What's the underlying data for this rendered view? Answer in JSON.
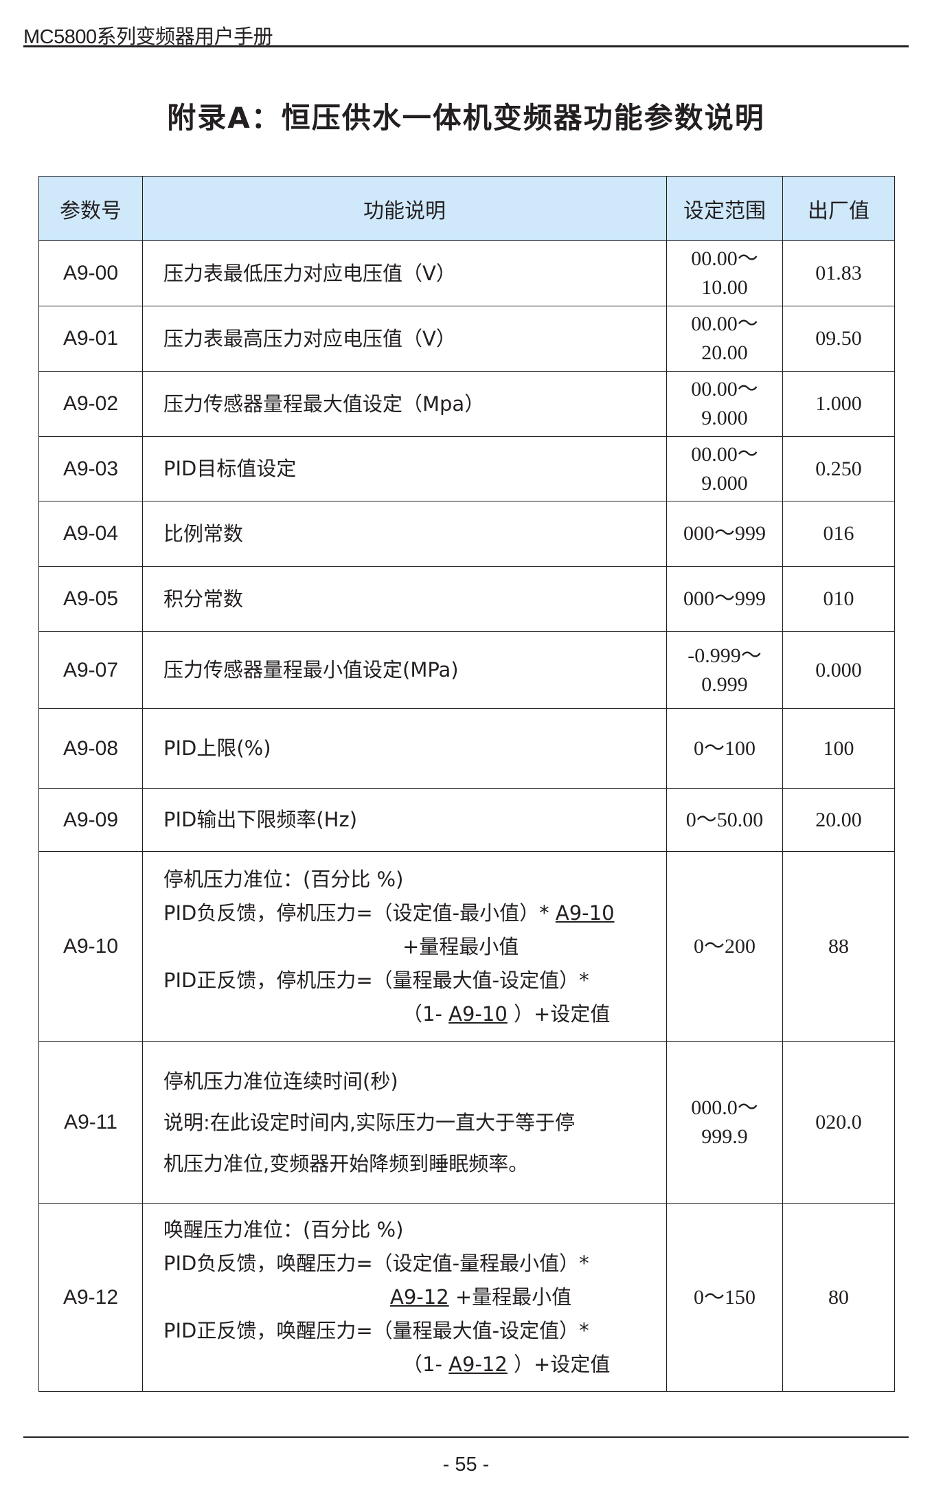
{
  "header": {
    "manual_title": "MC5800系列变频器用户手册"
  },
  "title": "附录A：恒压供水一体机变频器功能参数说明",
  "table": {
    "header_bg": "#cfe9fb",
    "columns": [
      "参数号",
      "功能说明",
      "设定范围",
      "出厂值"
    ],
    "rows": [
      {
        "code": "A9-00",
        "desc": [
          [
            {
              "t": "压力表最低压力对应电压值（V）"
            }
          ]
        ],
        "range": [
          "00.00～",
          "10.00"
        ],
        "default": "01.83"
      },
      {
        "code": "A9-01",
        "desc": [
          [
            {
              "t": "压力表最高压力对应电压值（V）"
            }
          ]
        ],
        "range": [
          "00.00～",
          "20.00"
        ],
        "default": "09.50"
      },
      {
        "code": "A9-02",
        "desc": [
          [
            {
              "t": "压力传感器量程最大值设定（Mpa）"
            }
          ]
        ],
        "range": [
          "00.00～",
          "9.000"
        ],
        "default": "1.000"
      },
      {
        "code": "A9-03",
        "desc": [
          [
            {
              "t": "PID目标值设定"
            }
          ]
        ],
        "range": [
          "00.00～",
          "9.000"
        ],
        "default": "0.250"
      },
      {
        "code": "A9-04",
        "desc": [
          [
            {
              "t": "比例常数"
            }
          ]
        ],
        "range": [
          "000～999"
        ],
        "default": "016"
      },
      {
        "code": "A9-05",
        "desc": [
          [
            {
              "t": "积分常数"
            }
          ]
        ],
        "range": [
          "000～999"
        ],
        "default": "010"
      },
      {
        "code": "A9-07",
        "desc": [
          [
            {
              "t": " 压力传感器量程最小值设定(MPa)"
            }
          ]
        ],
        "range": [
          "-0.999～",
          "0.999"
        ],
        "default": "0.000"
      },
      {
        "code": "A9-08",
        "desc": [
          [
            {
              "t": " PID上限(%)"
            }
          ]
        ],
        "range": [
          "0～100"
        ],
        "default": "100"
      },
      {
        "code": "A9-09",
        "desc": [
          [
            {
              "t": "PID输出下限频率(Hz)"
            }
          ]
        ],
        "range": [
          "0～50.00"
        ],
        "default": "20.00"
      },
      {
        "code": "A9-10",
        "desc": [
          [
            {
              "t": "停机压力准位：(百分比 %)"
            }
          ],
          [
            {
              "t": "PID负反馈，停机压力=（设定值-最小值）* "
            },
            {
              "t": "A9-10",
              "u": true
            }
          ],
          [
            {
              "t": "+量程最小值",
              "indent": true
            }
          ],
          [
            {
              "t": "PID正反馈，停机压力=（量程最大值-设定值）*"
            }
          ],
          [
            {
              "t": "（1- ",
              "indent": true
            },
            {
              "t": "A9-10",
              "u": true
            },
            {
              "t": " ）+设定值"
            }
          ]
        ],
        "range": [
          "0～200"
        ],
        "default": "88"
      },
      {
        "code": "A9-11",
        "desc": [
          [
            {
              "t": "停机压力准位连续时间(秒)"
            }
          ],
          [
            {
              "t": "说明:在此设定时间内,实际压力一直大于等于停"
            }
          ],
          [
            {
              "t": "机压力准位,变频器开始降频到睡眠频率。"
            }
          ]
        ],
        "range": [
          "000.0～",
          "999.9"
        ],
        "default": "020.0"
      },
      {
        "code": "A9-12",
        "desc": [
          [
            {
              "t": "唤醒压力准位：(百分比 %)"
            }
          ],
          [
            {
              "t": "PID负反馈，唤醒压力=（设定值-量程最小值）*"
            }
          ],
          [
            {
              "t": "A9-12",
              "u": true,
              "indent2": true
            },
            {
              "t": " +量程最小值"
            }
          ],
          [
            {
              "t": "PID正反馈，唤醒压力=（量程最大值-设定值）*"
            }
          ],
          [
            {
              "t": "（1- ",
              "indent": true
            },
            {
              "t": "A9-12",
              "u": true
            },
            {
              "t": " ）+设定值"
            }
          ]
        ],
        "range": [
          "0～150"
        ],
        "default": "80"
      }
    ]
  },
  "footer": {
    "page_number": "- 55 -"
  }
}
